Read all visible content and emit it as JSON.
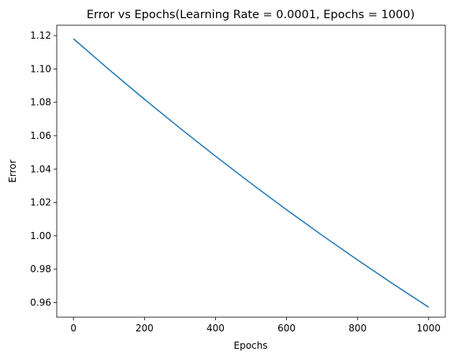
{
  "chart_data": {
    "type": "line",
    "title": "Error vs Epochs(Learning Rate = 0.0001, Epochs = 1000)",
    "xlabel": "Epochs",
    "ylabel": "Error",
    "xlim": [
      -47,
      1047
    ],
    "ylim": [
      0.9512,
      1.1262
    ],
    "xticks": [
      0,
      200,
      400,
      600,
      800,
      1000
    ],
    "xtick_labels": [
      "0",
      "200",
      "400",
      "600",
      "800",
      "1000"
    ],
    "yticks": [
      0.96,
      0.98,
      1.0,
      1.02,
      1.04,
      1.06,
      1.08,
      1.1,
      1.12
    ],
    "ytick_labels": [
      "0.96",
      "0.98",
      "1.00",
      "1.02",
      "1.04",
      "1.06",
      "1.08",
      "1.10",
      "1.12"
    ],
    "grid": false,
    "legend": "none",
    "series": [
      {
        "color": "#1f77b4",
        "x": [
          0,
          100,
          200,
          300,
          400,
          500,
          600,
          700,
          800,
          900,
          1000
        ],
        "y": [
          1.1181,
          1.0997,
          1.0818,
          1.0645,
          1.0477,
          1.0314,
          1.0156,
          1.0003,
          0.9855,
          0.9711,
          0.9572
        ]
      }
    ]
  }
}
